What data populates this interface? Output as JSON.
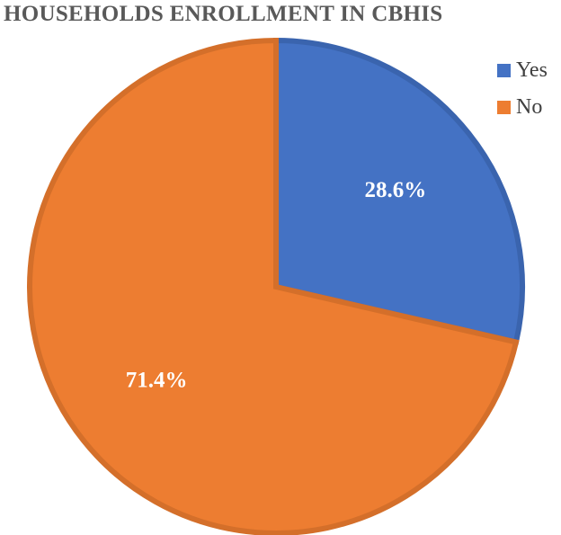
{
  "chart_data": {
    "type": "pie",
    "title": "HOUSEHOLDS ENROLLMENT IN CBHIS",
    "categories": [
      "Yes",
      "No"
    ],
    "values": [
      28.6,
      71.4
    ],
    "data_labels": [
      "28.6%",
      "71.4%"
    ],
    "colors": [
      "#4472C4",
      "#ED7D31"
    ],
    "legend_position": "top-right"
  }
}
